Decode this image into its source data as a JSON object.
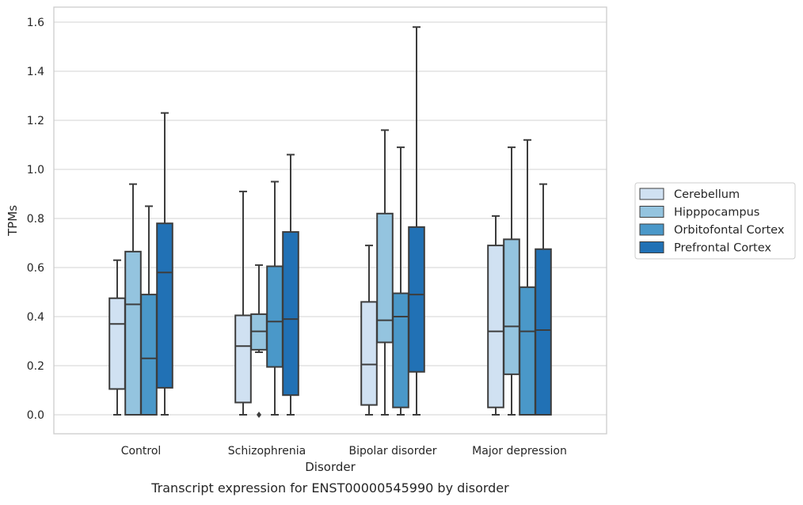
{
  "chart_data": {
    "type": "boxplot",
    "caption": "Transcript expression for ENST00000545990 by disorder",
    "xlabel": "Disorder",
    "ylabel": "TPMs",
    "ylim": [
      -0.08,
      1.66
    ],
    "yticks": [
      0.0,
      0.2,
      0.4,
      0.6,
      0.8,
      1.0,
      1.2,
      1.4,
      1.6
    ],
    "ytick_labels": [
      "0.0",
      "0.2",
      "0.4",
      "0.6",
      "0.8",
      "1.0",
      "1.2",
      "1.4",
      "1.6"
    ],
    "grid": "horizontal",
    "legend_position": "right",
    "categories": [
      "Control",
      "Schizophrenia",
      "Bipolar disorder",
      "Major depression"
    ],
    "series": [
      {
        "name": "Cerebellum",
        "color": "#d0e1f2",
        "boxes": [
          {
            "whislo": 0.0,
            "q1": 0.105,
            "med": 0.37,
            "q3": 0.475,
            "whishi": 0.63,
            "fliers": []
          },
          {
            "whislo": 0.0,
            "q1": 0.05,
            "med": 0.28,
            "q3": 0.405,
            "whishi": 0.91,
            "fliers": []
          },
          {
            "whislo": 0.0,
            "q1": 0.04,
            "med": 0.205,
            "q3": 0.46,
            "whishi": 0.69,
            "fliers": []
          },
          {
            "whislo": 0.0,
            "q1": 0.03,
            "med": 0.34,
            "q3": 0.69,
            "whishi": 0.81,
            "fliers": []
          }
        ]
      },
      {
        "name": "Hipppocampus",
        "color": "#94c4df",
        "boxes": [
          {
            "whislo": 0.0,
            "q1": 0.0,
            "med": 0.45,
            "q3": 0.665,
            "whishi": 0.94,
            "fliers": []
          },
          {
            "whislo": 0.255,
            "q1": 0.265,
            "med": 0.34,
            "q3": 0.41,
            "whishi": 0.61,
            "fliers": [
              0.0
            ]
          },
          {
            "whislo": 0.0,
            "q1": 0.295,
            "med": 0.385,
            "q3": 0.82,
            "whishi": 1.16,
            "fliers": []
          },
          {
            "whislo": 0.0,
            "q1": 0.165,
            "med": 0.36,
            "q3": 0.715,
            "whishi": 1.09,
            "fliers": []
          }
        ]
      },
      {
        "name": "Orbitofontal Cortex",
        "color": "#4a98c9",
        "boxes": [
          {
            "whislo": 0.0,
            "q1": 0.0,
            "med": 0.23,
            "q3": 0.49,
            "whishi": 0.85,
            "fliers": []
          },
          {
            "whislo": 0.0,
            "q1": 0.195,
            "med": 0.38,
            "q3": 0.605,
            "whishi": 0.95,
            "fliers": []
          },
          {
            "whislo": 0.0,
            "q1": 0.03,
            "med": 0.4,
            "q3": 0.495,
            "whishi": 1.09,
            "fliers": []
          },
          {
            "whislo": 0.0,
            "q1": 0.0,
            "med": 0.34,
            "q3": 0.52,
            "whishi": 1.12,
            "fliers": []
          }
        ]
      },
      {
        "name": "Prefrontal Cortex",
        "color": "#2171b5",
        "boxes": [
          {
            "whislo": 0.0,
            "q1": 0.11,
            "med": 0.58,
            "q3": 0.78,
            "whishi": 1.23,
            "fliers": []
          },
          {
            "whislo": 0.0,
            "q1": 0.08,
            "med": 0.39,
            "q3": 0.745,
            "whishi": 1.06,
            "fliers": []
          },
          {
            "whislo": 0.0,
            "q1": 0.175,
            "med": 0.49,
            "q3": 0.765,
            "whishi": 1.58,
            "fliers": []
          },
          {
            "whislo": 0.0,
            "q1": 0.0,
            "med": 0.345,
            "q3": 0.675,
            "whishi": 0.94,
            "fliers": []
          }
        ]
      }
    ]
  }
}
